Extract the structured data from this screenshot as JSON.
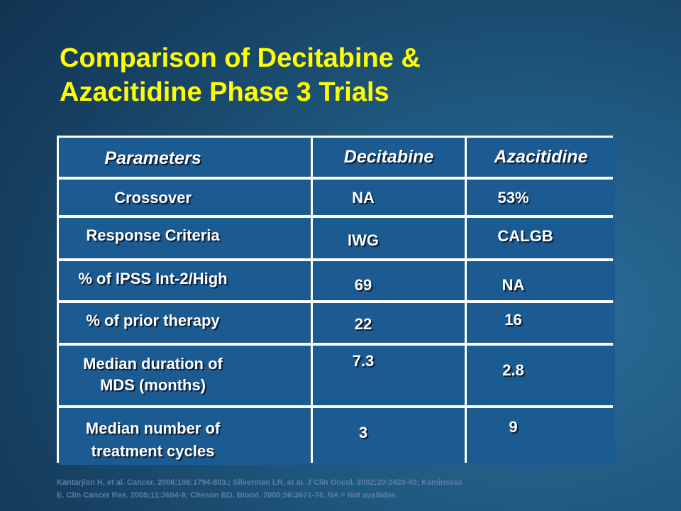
{
  "title": {
    "line1": "Comparison of Decitabine &",
    "line2": "Azacitidine Phase 3 Trials"
  },
  "table": {
    "headers": [
      "Parameters",
      "Decitabine",
      "Azacitidine"
    ],
    "rows": [
      {
        "parameter": [
          "Crossover"
        ],
        "decitabine": "NA",
        "azacitidine": "53%"
      },
      {
        "parameter": [
          "Response Criteria"
        ],
        "decitabine": "IWG",
        "azacitidine": "CALGB"
      },
      {
        "parameter": [
          "% of IPSS Int-2/High"
        ],
        "decitabine": "69",
        "azacitidine": "NA"
      },
      {
        "parameter": [
          "%  of prior therapy"
        ],
        "decitabine": "22",
        "azacitidine": "16"
      },
      {
        "parameter": [
          "Median duration of",
          "MDS (months)"
        ],
        "decitabine": "7.3",
        "azacitidine": "2.8"
      },
      {
        "parameter": [
          "Median number of",
          "treatment cycles"
        ],
        "decitabine": "3",
        "azacitidine": "9"
      }
    ]
  },
  "reference": {
    "line1": "Kantarjian H, et al. Cancer. 2006;106:1794-803.;  Silverman LR, et al. J Clin Oncol. 2002;20:2429-40;  Kaminskas",
    "line2": "E. Clin Cancer Res. 2005;11:3604-8;  Cheson BD. Blood. 2000;96:3671-74.  NA = Not available."
  }
}
